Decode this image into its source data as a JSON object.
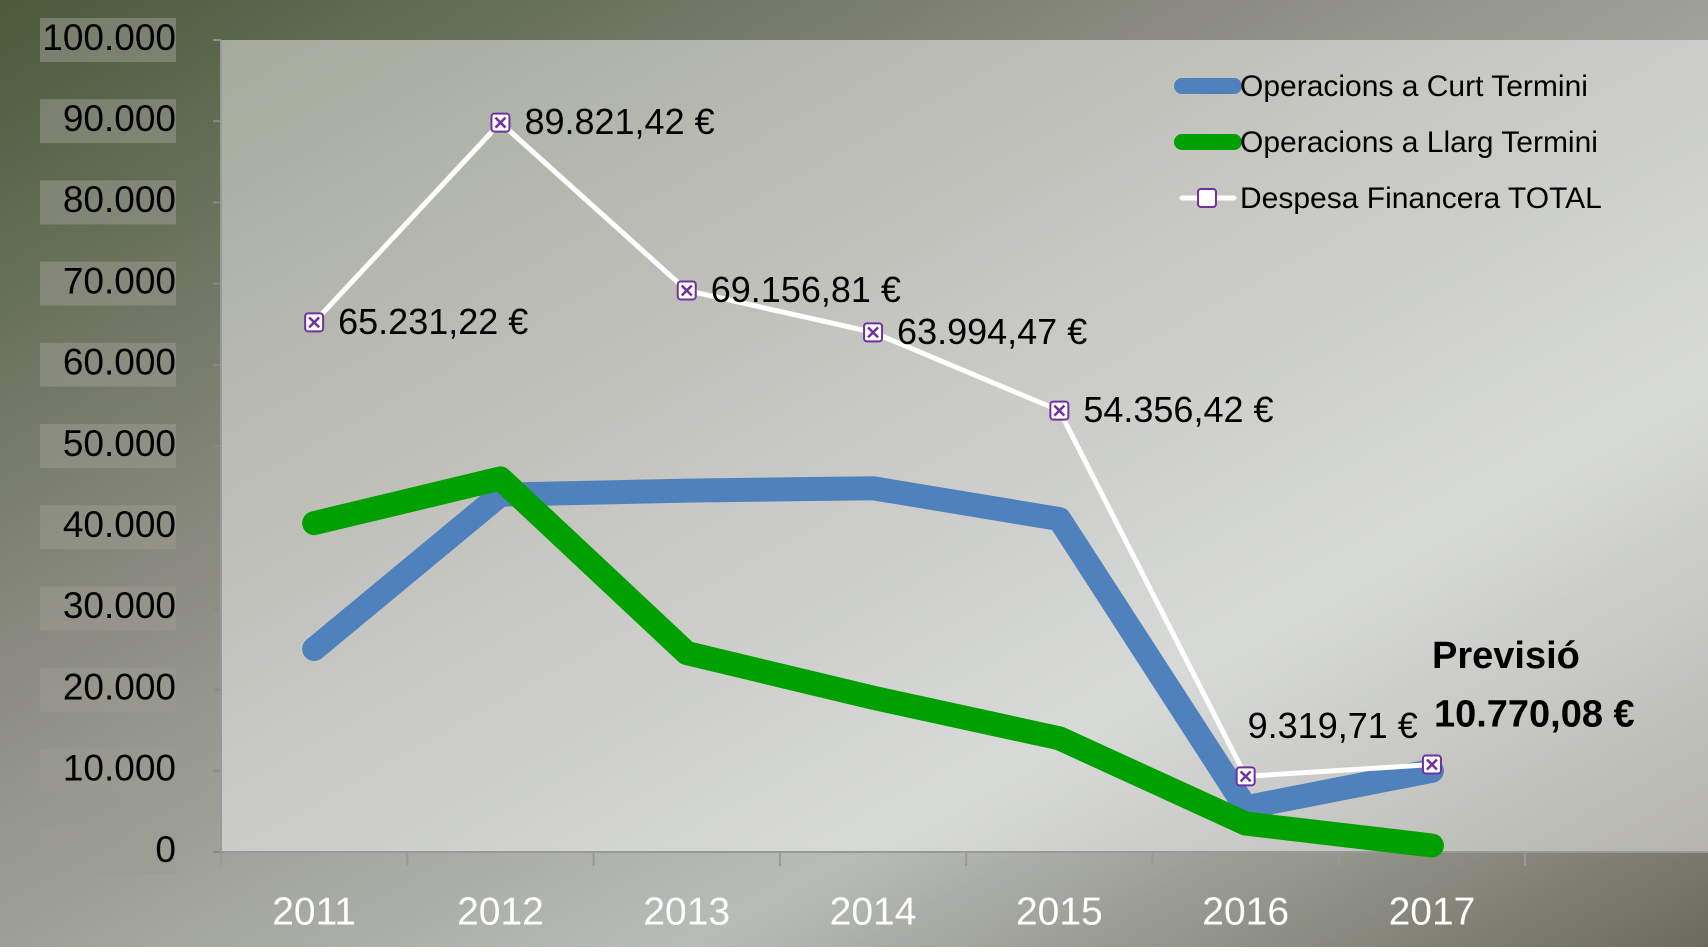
{
  "chart_data": {
    "type": "line",
    "categories": [
      "2011",
      "2012",
      "2013",
      "2014",
      "2015",
      "2016",
      "2017",
      null
    ],
    "series": [
      {
        "name": "Operacions a Curt Termini",
        "color": "#4f81bd",
        "values": [
          25000,
          44000,
          44500,
          44800,
          41000,
          5500,
          10000,
          null
        ]
      },
      {
        "name": "Operacions a Llarg Termini",
        "color": "#00a000",
        "values": [
          40500,
          46000,
          24500,
          19000,
          14000,
          3500,
          800,
          null
        ]
      },
      {
        "name": "Despesa Financera TOTAL",
        "color": "#ffffff",
        "marker_color": "#7030a0",
        "values": [
          65231.22,
          89821.42,
          69156.81,
          63994.47,
          54356.42,
          9319.71,
          10770.08,
          null
        ],
        "value_labels": [
          "65.231,22 €",
          "89.821,42 €",
          "69.156,81 €",
          "63.994,47 €",
          "54.356,42 €",
          "9.319,71 €",
          "10.770,08 €",
          null
        ]
      }
    ],
    "annotation": "Previsió",
    "ylim": [
      0,
      100000
    ],
    "yticks": [
      0,
      {
        "value": 10000,
        "label": "10.000"
      },
      {
        "value": 20000,
        "label": "20.000"
      },
      {
        "value": 30000,
        "label": "30.000"
      },
      {
        "value": 40000,
        "label": "40.000"
      },
      {
        "value": 50000,
        "label": "50.000"
      },
      {
        "value": 60000,
        "label": "60.000"
      },
      {
        "value": 70000,
        "label": "70.000"
      },
      {
        "value": 80000,
        "label": "80.000"
      },
      {
        "value": 90000,
        "label": "90.000"
      },
      {
        "value": 100000,
        "label": "100.000"
      }
    ],
    "legend": "top-right"
  }
}
